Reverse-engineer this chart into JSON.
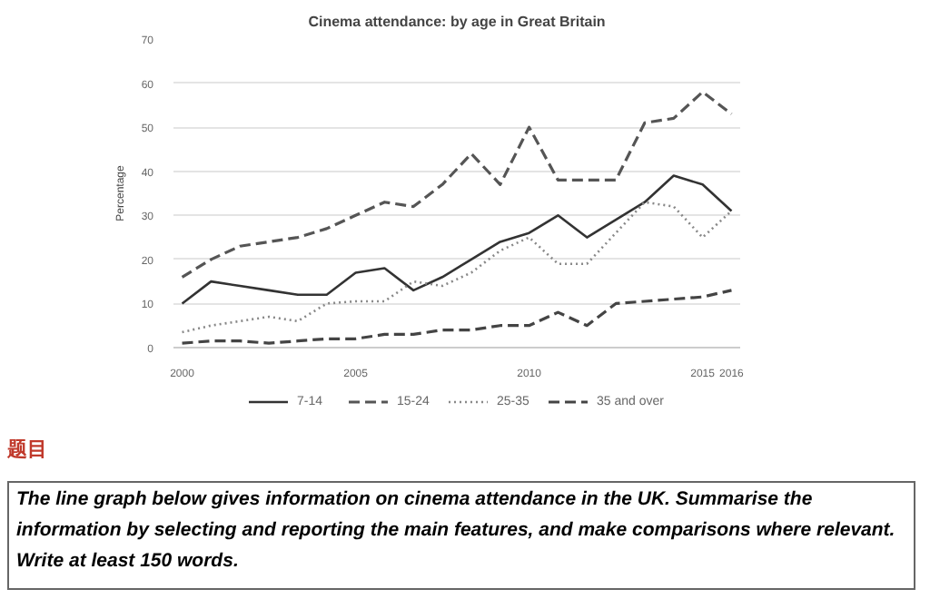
{
  "chart_data": {
    "type": "line",
    "title": "Cinema attendance: by age in Great Britain",
    "ylabel": "Percentage",
    "categories": [
      "2000",
      null,
      null,
      null,
      null,
      null,
      "2005",
      null,
      null,
      null,
      null,
      null,
      "2010",
      null,
      null,
      null,
      null,
      null,
      "2015",
      "2016"
    ],
    "series": [
      {
        "name": "7-14",
        "color": "#333333",
        "line_style": "solid",
        "values": [
          10,
          15,
          14,
          13,
          12,
          12,
          17,
          18,
          13,
          16,
          20,
          24,
          26,
          30,
          25,
          29,
          33,
          39,
          37,
          31
        ]
      },
      {
        "name": "15-24",
        "color": "#555555",
        "line_style": "dashed",
        "values": [
          16,
          20,
          23,
          24,
          25,
          27,
          30,
          33,
          32,
          37,
          44,
          37,
          50,
          38,
          38,
          38,
          51,
          52,
          58,
          53
        ]
      },
      {
        "name": "25-35",
        "color": "#888888",
        "line_style": "dotted",
        "values": [
          3.5,
          5,
          6,
          7,
          6,
          10,
          10.5,
          10.5,
          15,
          14,
          17,
          22,
          25,
          19,
          19,
          26,
          33,
          32,
          25,
          31
        ]
      },
      {
        "name": "35 and over",
        "color": "#444444",
        "line_style": "dashed",
        "values": [
          1,
          1.5,
          1.5,
          1,
          1.5,
          2,
          2,
          3,
          3,
          4,
          4,
          5,
          5,
          8,
          5,
          10,
          10.5,
          11,
          11.5,
          13
        ]
      }
    ],
    "ylim": [
      0,
      70
    ],
    "yticks": [
      0,
      10,
      20,
      30,
      40,
      50,
      60,
      70
    ],
    "grid": "y",
    "legend": "bottom",
    "marker": "none",
    "annotations": [
      "题目",
      "The line graph below gives information on cinema attendance in the UK. Summarise the information by selecting and reporting the main features, and make comparisons where relevant.",
      "Write at least 150 words."
    ]
  }
}
